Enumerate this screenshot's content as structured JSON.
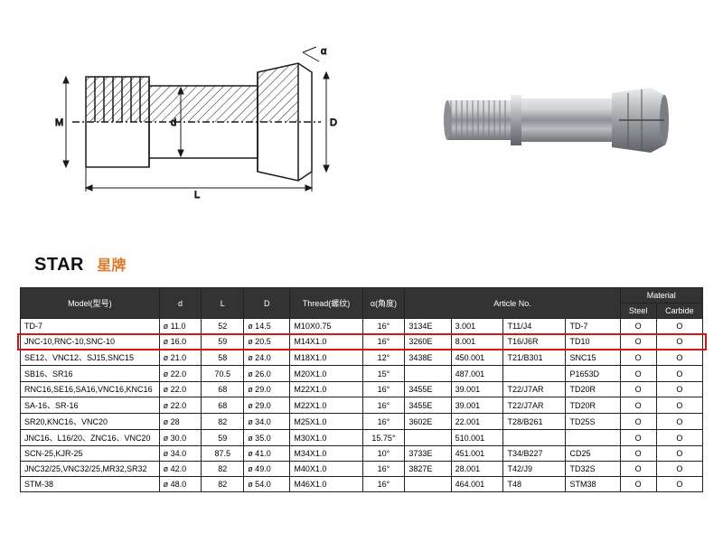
{
  "brand": {
    "en": "STAR",
    "cn": "星牌"
  },
  "diagram": {
    "body_color": "#ffffff",
    "line_color": "#1a1a1a",
    "hatch_color": "#1a1a1a",
    "labels": {
      "M": "M",
      "d": "d",
      "D": "D",
      "alpha": "α",
      "L": "L"
    }
  },
  "photo": {
    "body_color": "#b9bcc0",
    "shadow_color": "#6f7478",
    "highlight_color": "#e4e6e8"
  },
  "highlight_color": "#d41616",
  "highlighted_row_index": 1,
  "table": {
    "header": {
      "model": "Model(型号)",
      "d": "d",
      "L": "L",
      "D": "D",
      "thread": "Thread(螺纹)",
      "alpha": "α(角度)",
      "article": "Article No.",
      "material": "Material",
      "steel": "Steel",
      "carbide": "Carbide"
    },
    "rows": [
      {
        "model": "TD-7",
        "d": "ø 11.0",
        "L": "52",
        "D": "ø 14.5",
        "thread": "M10X0.75",
        "alpha": "16°",
        "a1": "3134E",
        "a2": "3.001",
        "a3": "T11/J4",
        "a4": "TD-7",
        "steel": "O",
        "carbide": "O"
      },
      {
        "model": "JNC-10,RNC-10,SNC-10",
        "d": "ø 16.0",
        "L": "59",
        "D": "ø 20.5",
        "thread": "M14X1.0",
        "alpha": "16°",
        "a1": "3260E",
        "a2": "8.001",
        "a3": "T16/J6R",
        "a4": "TD10",
        "steel": "O",
        "carbide": "O"
      },
      {
        "model": "SE12、VNC12、SJ15,SNC15",
        "d": "ø 21.0",
        "L": "58",
        "D": "ø 24.0",
        "thread": "M18X1.0",
        "alpha": "12°",
        "a1": "3438E",
        "a2": "450.001",
        "a3": "T21/B301",
        "a4": "SNC15",
        "steel": "O",
        "carbide": "O"
      },
      {
        "model": "SB16、SR16",
        "d": "ø 22.0",
        "L": "70.5",
        "D": "ø 26.0",
        "thread": "M20X1.0",
        "alpha": "15°",
        "a1": "",
        "a2": "487.001",
        "a3": "",
        "a4": "P1653D",
        "steel": "O",
        "carbide": "O"
      },
      {
        "model": "RNC16,SE16,SA16,VNC16,KNC16",
        "d": "ø 22.0",
        "L": "68",
        "D": "ø 29.0",
        "thread": "M22X1.0",
        "alpha": "16°",
        "a1": "3455E",
        "a2": "39.001",
        "a3": "T22/J7AR",
        "a4": "TD20R",
        "steel": "O",
        "carbide": "O"
      },
      {
        "model": "SA-16、SR-16",
        "d": "ø 22.0",
        "L": "68",
        "D": "ø 29.0",
        "thread": "M22X1.0",
        "alpha": "16°",
        "a1": "3455E",
        "a2": "39.001",
        "a3": "T22/J7AR",
        "a4": "TD20R",
        "steel": "O",
        "carbide": "O"
      },
      {
        "model": "SR20,KNC16、VNC20",
        "d": "ø 28",
        "L": "82",
        "D": "ø 34.0",
        "thread": "M25X1.0",
        "alpha": "16°",
        "a1": "3602E",
        "a2": "22.001",
        "a3": "T28/B261",
        "a4": "TD25S",
        "steel": "O",
        "carbide": "O"
      },
      {
        "model": "JNC16、L16/20、ZNC16、VNC20",
        "d": "ø 30.0",
        "L": "59",
        "D": "ø 35.0",
        "thread": "M30X1.0",
        "alpha": "15.75°",
        "a1": "",
        "a2": "510.001",
        "a3": "",
        "a4": "",
        "steel": "O",
        "carbide": "O"
      },
      {
        "model": "SCN-25,KJR-25",
        "d": "ø 34.0",
        "L": "87.5",
        "D": "ø 41.0",
        "thread": "M34X1.0",
        "alpha": "10°",
        "a1": "3733E",
        "a2": "451.001",
        "a3": "T34/B227",
        "a4": "CD25",
        "steel": "O",
        "carbide": "O"
      },
      {
        "model": "JNC32/25,VNC32/25,MR32,SR32",
        "d": "ø 42.0",
        "L": "82",
        "D": "ø 49.0",
        "thread": "M40X1.0",
        "alpha": "16°",
        "a1": "3827E",
        "a2": "28.001",
        "a3": "T42/J9",
        "a4": "TD32S",
        "steel": "O",
        "carbide": "O"
      },
      {
        "model": "STM-38",
        "d": "ø 48.0",
        "L": "82",
        "D": "ø 54.0",
        "thread": "M46X1.0",
        "alpha": "16°",
        "a1": "",
        "a2": "464.001",
        "a3": "T48",
        "a4": "STM38",
        "steel": "O",
        "carbide": "O"
      }
    ]
  }
}
